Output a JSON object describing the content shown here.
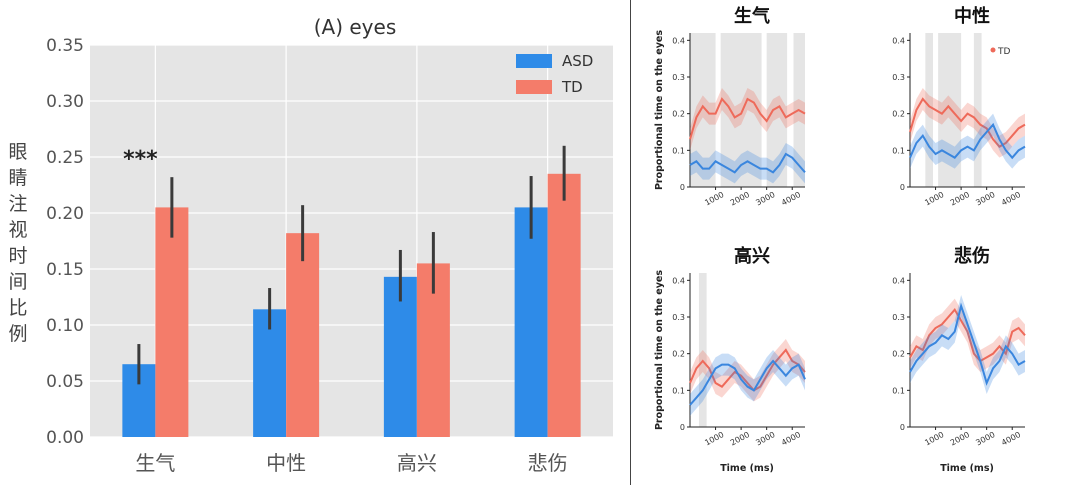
{
  "chart_data": [
    {
      "type": "bar",
      "title": "(A) eyes",
      "xlabel": "",
      "ylabel": "眼睛注视时间比例",
      "categories": [
        "生气",
        "中性",
        "高兴",
        "悲伤"
      ],
      "ylim": [
        0,
        0.35
      ],
      "yticks": [
        "0.00",
        "0.05",
        "0.10",
        "0.15",
        "0.20",
        "0.25",
        "0.30",
        "0.35"
      ],
      "legend_position": "top-right",
      "grid": true,
      "series": [
        {
          "name": "ASD",
          "color": "#2e8be8",
          "values": [
            0.065,
            0.114,
            0.143,
            0.205
          ],
          "err_low": [
            0.047,
            0.096,
            0.121,
            0.177
          ],
          "err_high": [
            0.083,
            0.133,
            0.167,
            0.233
          ]
        },
        {
          "name": "TD",
          "color": "#f47c6a",
          "values": [
            0.205,
            0.182,
            0.155,
            0.235
          ],
          "err_low": [
            0.178,
            0.157,
            0.128,
            0.211
          ],
          "err_high": [
            0.232,
            0.207,
            0.183,
            0.26
          ]
        }
      ],
      "annotations": [
        {
          "category": "生气",
          "text": "***"
        }
      ]
    },
    {
      "type": "line",
      "title": "生气",
      "ylabel": "Proportional time on the eyes",
      "xlabel": "",
      "xlim": [
        0,
        4500
      ],
      "ylim": [
        0,
        0.42
      ],
      "xticks": [
        "1000",
        "2000",
        "3000",
        "4000"
      ],
      "yticks": [
        "0",
        "0.1",
        "0.2",
        "0.3",
        "0.4"
      ],
      "x": [
        0,
        250,
        500,
        750,
        1000,
        1250,
        1500,
        1750,
        2000,
        2250,
        2500,
        2750,
        3000,
        3250,
        3500,
        3750,
        4000,
        4250,
        4500
      ],
      "shaded_ranges": [
        [
          0,
          1000
        ],
        [
          1200,
          2800
        ],
        [
          3000,
          3800
        ],
        [
          4050,
          4500
        ]
      ],
      "series": [
        {
          "name": "TD",
          "color": "#ee6a5a",
          "values": [
            0.13,
            0.19,
            0.22,
            0.2,
            0.2,
            0.24,
            0.22,
            0.19,
            0.2,
            0.24,
            0.23,
            0.2,
            0.18,
            0.21,
            0.22,
            0.19,
            0.2,
            0.21,
            0.2
          ]
        },
        {
          "name": "ASD",
          "color": "#3a86de",
          "values": [
            0.06,
            0.07,
            0.05,
            0.05,
            0.07,
            0.06,
            0.05,
            0.04,
            0.06,
            0.07,
            0.06,
            0.05,
            0.05,
            0.04,
            0.06,
            0.09,
            0.08,
            0.06,
            0.04
          ]
        }
      ]
    },
    {
      "type": "line",
      "title": "中性",
      "ylabel": "",
      "xlabel": "",
      "xlim": [
        0,
        4500
      ],
      "ylim": [
        0,
        0.42
      ],
      "xticks": [
        "1000",
        "2000",
        "3000",
        "4000"
      ],
      "yticks": [
        "0",
        "0.1",
        "0.2",
        "0.3",
        "0.4"
      ],
      "legend": [
        "TD"
      ],
      "x": [
        0,
        250,
        500,
        750,
        1000,
        1250,
        1500,
        1750,
        2000,
        2250,
        2500,
        2750,
        3000,
        3250,
        3500,
        3750,
        4000,
        4250,
        4500
      ],
      "shaded_ranges": [
        [
          600,
          900
        ],
        [
          1100,
          2000
        ],
        [
          2500,
          2800
        ]
      ],
      "series": [
        {
          "name": "TD",
          "color": "#ee6a5a",
          "values": [
            0.15,
            0.21,
            0.24,
            0.22,
            0.21,
            0.2,
            0.22,
            0.2,
            0.18,
            0.2,
            0.19,
            0.17,
            0.16,
            0.13,
            0.11,
            0.12,
            0.14,
            0.16,
            0.17
          ]
        },
        {
          "name": "ASD",
          "color": "#3a86de",
          "values": [
            0.08,
            0.12,
            0.14,
            0.11,
            0.09,
            0.1,
            0.09,
            0.08,
            0.1,
            0.11,
            0.1,
            0.13,
            0.15,
            0.17,
            0.13,
            0.1,
            0.08,
            0.1,
            0.11
          ]
        }
      ]
    },
    {
      "type": "line",
      "title": "高兴",
      "ylabel": "Proportional time on the eyes",
      "xlabel": "Time (ms)",
      "xlim": [
        0,
        4500
      ],
      "ylim": [
        0,
        0.42
      ],
      "xticks": [
        "1000",
        "2000",
        "3000",
        "4000"
      ],
      "yticks": [
        "0",
        "0.1",
        "0.2",
        "0.3",
        "0.4"
      ],
      "x": [
        0,
        250,
        500,
        750,
        1000,
        1250,
        1500,
        1750,
        2000,
        2250,
        2500,
        2750,
        3000,
        3250,
        3500,
        3750,
        4000,
        4250,
        4500
      ],
      "shaded_ranges": [
        [
          350,
          650
        ]
      ],
      "series": [
        {
          "name": "TD",
          "color": "#ee6a5a",
          "values": [
            0.12,
            0.16,
            0.18,
            0.16,
            0.12,
            0.11,
            0.13,
            0.15,
            0.14,
            0.12,
            0.1,
            0.11,
            0.14,
            0.17,
            0.19,
            0.21,
            0.18,
            0.17,
            0.15
          ]
        },
        {
          "name": "ASD",
          "color": "#3a86de",
          "values": [
            0.06,
            0.08,
            0.1,
            0.13,
            0.16,
            0.17,
            0.17,
            0.16,
            0.13,
            0.11,
            0.1,
            0.13,
            0.16,
            0.18,
            0.16,
            0.14,
            0.16,
            0.17,
            0.13
          ]
        }
      ]
    },
    {
      "type": "line",
      "title": "悲伤",
      "ylabel": "",
      "xlabel": "Time (ms)",
      "xlim": [
        0,
        4500
      ],
      "ylim": [
        0,
        0.42
      ],
      "xticks": [
        "1000",
        "2000",
        "3000",
        "4000"
      ],
      "yticks": [
        "0",
        "0.1",
        "0.2",
        "0.3",
        "0.4"
      ],
      "x": [
        0,
        250,
        500,
        750,
        1000,
        1250,
        1500,
        1750,
        2000,
        2250,
        2500,
        2750,
        3000,
        3250,
        3500,
        3750,
        4000,
        4250,
        4500
      ],
      "shaded_ranges": [],
      "series": [
        {
          "name": "TD",
          "color": "#ee6a5a",
          "values": [
            0.19,
            0.22,
            0.21,
            0.25,
            0.27,
            0.28,
            0.3,
            0.32,
            0.29,
            0.26,
            0.2,
            0.18,
            0.19,
            0.2,
            0.22,
            0.2,
            0.26,
            0.27,
            0.25
          ]
        },
        {
          "name": "ASD",
          "color": "#3a86de",
          "values": [
            0.15,
            0.18,
            0.2,
            0.22,
            0.23,
            0.25,
            0.24,
            0.26,
            0.33,
            0.28,
            0.23,
            0.18,
            0.12,
            0.16,
            0.18,
            0.22,
            0.2,
            0.17,
            0.18
          ]
        }
      ]
    }
  ]
}
